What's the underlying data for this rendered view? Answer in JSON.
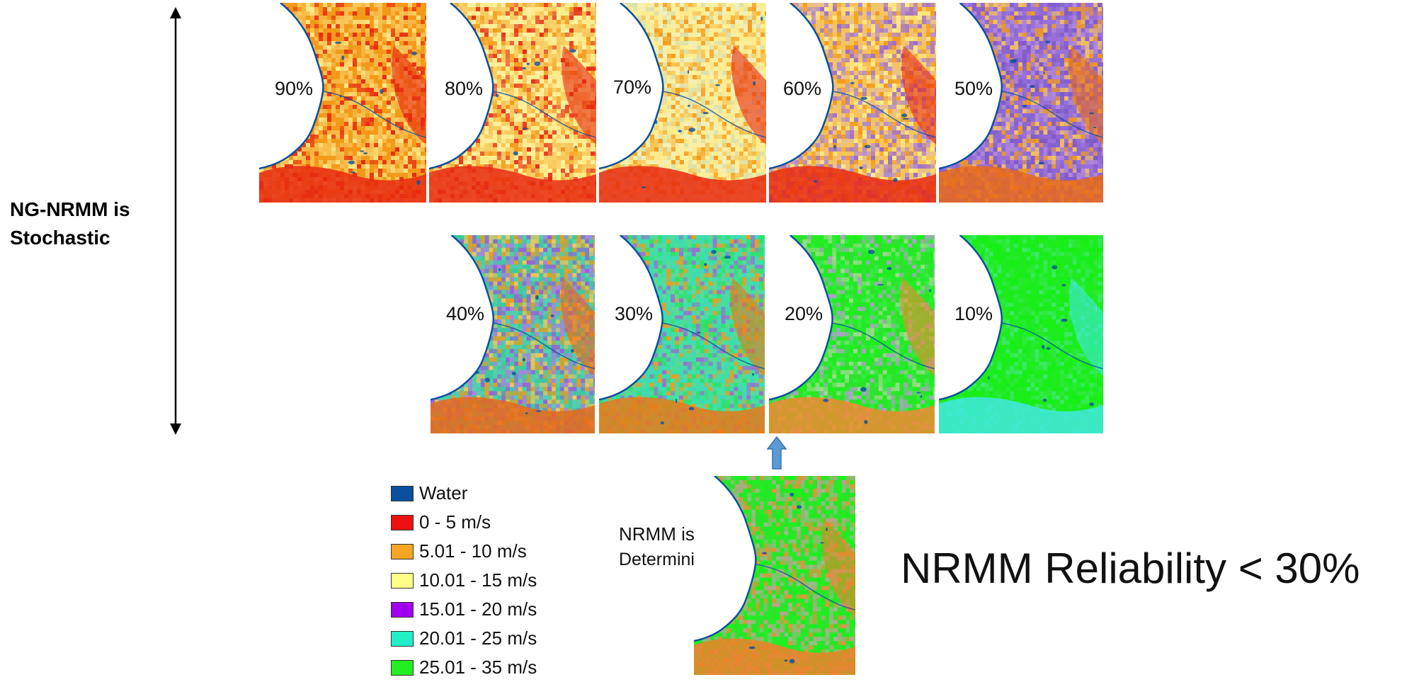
{
  "side_label": {
    "line1": "NG-NRMM is",
    "line2": "Stochastic"
  },
  "maps": [
    {
      "label": "90%",
      "palette": [
        "#f39a1a",
        "#f7c458",
        "#fdeb8c",
        "#e82a12",
        "#f39a1a",
        "#f7c458"
      ],
      "accent": "#e82a12"
    },
    {
      "label": "80%",
      "palette": [
        "#fdeb8c",
        "#f7c458",
        "#f39a1a",
        "#fdf0a0",
        "#e82a12",
        "#f7c458"
      ],
      "accent": "#e82a12"
    },
    {
      "label": "70%",
      "palette": [
        "#fdeb8c",
        "#eef0c0",
        "#f7c458",
        "#f39a1a",
        "#fdf0a0",
        "#d8e0b0"
      ],
      "accent": "#e82a12"
    },
    {
      "label": "60%",
      "palette": [
        "#f7c458",
        "#b08ad8",
        "#fdeb8c",
        "#f39a1a",
        "#9a6ad0",
        "#e8c090"
      ],
      "accent": "#e82a12"
    },
    {
      "label": "50%",
      "palette": [
        "#9a70d8",
        "#7e58c8",
        "#f39a1a",
        "#b08ad8",
        "#f7c458",
        "#8a66d0"
      ],
      "accent": "#e86a1a"
    },
    {
      "label": "40%",
      "palette": [
        "#40c8a0",
        "#9a60d8",
        "#f39a1a",
        "#58d0b0",
        "#b080e0",
        "#f7c458"
      ],
      "accent": "#e86a1a"
    },
    {
      "label": "30%",
      "palette": [
        "#3ee0a8",
        "#30e060",
        "#9a70d0",
        "#f39a1a",
        "#60d890",
        "#40d8b8"
      ],
      "accent": "#e87a1a"
    },
    {
      "label": "20%",
      "palette": [
        "#22ee22",
        "#30e030",
        "#a0d890",
        "#38ea48",
        "#22e822",
        "#b0a0c8"
      ],
      "accent": "#f08a30"
    },
    {
      "label": "10%",
      "palette": [
        "#18ee18",
        "#22ea22",
        "#30e840",
        "#18f018",
        "#40e870",
        "#22ec22"
      ],
      "accent": "#40e8e0"
    }
  ],
  "deterministic_map": {
    "palette": [
      "#22ee22",
      "#30e030",
      "#a0b890",
      "#e89040",
      "#22e822",
      "#c0a090"
    ],
    "accent": "#f0802a"
  },
  "legend": [
    {
      "label": "Water",
      "color": "#0a4fa0"
    },
    {
      "label": "0 - 5 m/s",
      "color": "#ee1111"
    },
    {
      "label": "5.01 - 10 m/s",
      "color": "#f5a623"
    },
    {
      "label": "10.01 - 15 m/s",
      "color": "#ffff88"
    },
    {
      "label": "15.01 - 20 m/s",
      "color": "#a000ee"
    },
    {
      "label": "20.01 - 25 m/s",
      "color": "#22eec8"
    },
    {
      "label": "25.01 - 35 m/s",
      "color": "#22ee22"
    }
  ],
  "nrmm_note": {
    "line1": "NRMM is",
    "line2": "Deterministic"
  },
  "reliability_text": "NRMM Reliability < 30%",
  "colors": {
    "water": "#0a4fa0",
    "coast_bg": "#ffffff"
  }
}
